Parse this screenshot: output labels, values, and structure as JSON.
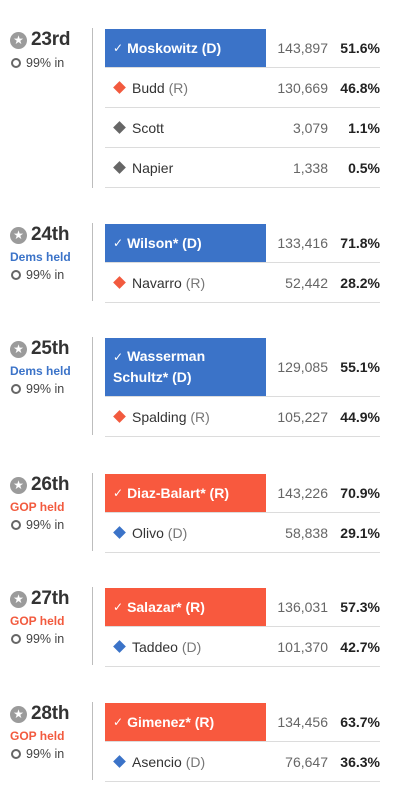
{
  "races": [
    {
      "district": "23rd",
      "held": "",
      "reporting": "99% in",
      "candidates": [
        {
          "name": "Moskowitz",
          "party": "(D)",
          "votes": "143,897",
          "pct": "51.6%"
        },
        {
          "name": "Budd",
          "party": "(R)",
          "votes": "130,669",
          "pct": "46.8%"
        },
        {
          "name": "Scott",
          "party": "",
          "votes": "3,079",
          "pct": "1.1%"
        },
        {
          "name": "Napier",
          "party": "",
          "votes": "1,338",
          "pct": "0.5%"
        }
      ]
    },
    {
      "district": "24th",
      "held": "Dems held",
      "reporting": "99% in",
      "candidates": [
        {
          "name": "Wilson*",
          "party": "(D)",
          "votes": "133,416",
          "pct": "71.8%"
        },
        {
          "name": "Navarro",
          "party": "(R)",
          "votes": "52,442",
          "pct": "28.2%"
        }
      ]
    },
    {
      "district": "25th",
      "held": "Dems held",
      "reporting": "99% in",
      "candidates": [
        {
          "name_line1": "Wasserman",
          "name_line2": "Schultz*",
          "party": "(D)",
          "votes": "129,085",
          "pct": "55.1%"
        },
        {
          "name": "Spalding",
          "party": "(R)",
          "votes": "105,227",
          "pct": "44.9%"
        }
      ]
    },
    {
      "district": "26th",
      "held": "GOP held",
      "reporting": "99% in",
      "candidates": [
        {
          "name": "Diaz-Balart*",
          "party": "(R)",
          "votes": "143,226",
          "pct": "70.9%"
        },
        {
          "name": "Olivo",
          "party": "(D)",
          "votes": "58,838",
          "pct": "29.1%"
        }
      ]
    },
    {
      "district": "27th",
      "held": "GOP held",
      "reporting": "99% in",
      "candidates": [
        {
          "name": "Salazar*",
          "party": "(R)",
          "votes": "136,031",
          "pct": "57.3%"
        },
        {
          "name": "Taddeo",
          "party": "(D)",
          "votes": "101,370",
          "pct": "42.7%"
        }
      ]
    },
    {
      "district": "28th",
      "held": "GOP held",
      "reporting": "99% in",
      "candidates": [
        {
          "name": "Gimenez*",
          "party": "(R)",
          "votes": "134,456",
          "pct": "63.7%"
        },
        {
          "name": "Asencio",
          "party": "(D)",
          "votes": "76,647",
          "pct": "36.3%"
        }
      ]
    }
  ],
  "icons": {
    "star": "★",
    "check": "✓"
  },
  "colors": {
    "dem": "#3b73c8",
    "gop": "#f8593e",
    "other": "#666666"
  }
}
